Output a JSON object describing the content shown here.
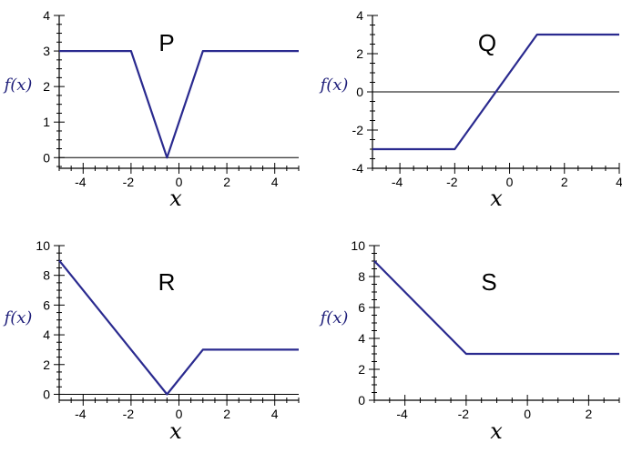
{
  "colors": {
    "curve": "#2a2a8f",
    "axis": "#000000",
    "ylabel": "#1f1f7a"
  },
  "chart_data": [
    {
      "type": "line",
      "title": "P",
      "xlabel": "x",
      "ylabel": "f(x)",
      "xlim": [
        -5,
        5
      ],
      "ylim": [
        -0.3,
        4
      ],
      "xticks": [
        -4,
        -2,
        0,
        2,
        4
      ],
      "yticks": [
        0,
        1,
        2,
        3,
        4
      ],
      "zero_line": true,
      "series": [
        {
          "x": [
            -5,
            -2,
            -0.5,
            1,
            5
          ],
          "y": [
            3,
            3,
            0,
            3,
            3
          ]
        }
      ]
    },
    {
      "type": "line",
      "title": "Q",
      "xlabel": "x",
      "ylabel": "f(x)",
      "xlim": [
        -5,
        4
      ],
      "ylim": [
        -4,
        4
      ],
      "xticks": [
        -4,
        -2,
        0,
        2,
        4
      ],
      "yticks": [
        -4,
        -2,
        0,
        2,
        4
      ],
      "zero_line": true,
      "series": [
        {
          "x": [
            -5,
            -2,
            1,
            4
          ],
          "y": [
            -3,
            -3,
            3,
            3
          ]
        }
      ]
    },
    {
      "type": "line",
      "title": "R",
      "xlabel": "x",
      "ylabel": "f(x)",
      "xlim": [
        -5,
        5
      ],
      "ylim": [
        -0.4,
        10
      ],
      "xticks": [
        -4,
        -2,
        0,
        2,
        4
      ],
      "yticks": [
        0,
        2,
        4,
        6,
        8,
        10
      ],
      "zero_line": true,
      "series": [
        {
          "x": [
            -5,
            -0.5,
            1,
            5
          ],
          "y": [
            9,
            0,
            3,
            3
          ]
        }
      ]
    },
    {
      "type": "line",
      "title": "S",
      "xlabel": "x",
      "ylabel": "f(x)",
      "xlim": [
        -5,
        3
      ],
      "ylim": [
        0,
        10
      ],
      "xticks": [
        -4,
        -2,
        0,
        2
      ],
      "yticks": [
        0,
        2,
        4,
        6,
        8,
        10
      ],
      "zero_line": false,
      "series": [
        {
          "x": [
            -5,
            -2,
            3
          ],
          "y": [
            9,
            3,
            3
          ]
        }
      ]
    }
  ]
}
